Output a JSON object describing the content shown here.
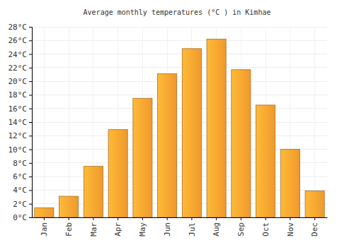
{
  "chart_data": {
    "type": "bar",
    "title": "Average monthly temperatures (°C ) in Kimhae",
    "categories": [
      "Jan",
      "Feb",
      "Mar",
      "Apr",
      "May",
      "Jun",
      "Jul",
      "Aug",
      "Sep",
      "Oct",
      "Nov",
      "Dec"
    ],
    "values": [
      1.4,
      3.1,
      7.5,
      12.9,
      17.5,
      21.1,
      24.8,
      26.2,
      21.7,
      16.5,
      10.0,
      3.9
    ],
    "color": "#fca12f",
    "ylim": [
      0,
      28
    ],
    "yticks": [
      {
        "value": 0,
        "label": "0°C"
      },
      {
        "value": 2,
        "label": "2°C"
      },
      {
        "value": 4,
        "label": "4°C"
      },
      {
        "value": 6,
        "label": "6°C"
      },
      {
        "value": 8,
        "label": "8°C"
      },
      {
        "value": 10,
        "label": "10°C"
      },
      {
        "value": 12,
        "label": "12°C"
      },
      {
        "value": 14,
        "label": "14°C"
      },
      {
        "value": 16,
        "label": "16°C"
      },
      {
        "value": 18,
        "label": "18°C"
      },
      {
        "value": 20,
        "label": "20°C"
      },
      {
        "value": 22,
        "label": "22°C"
      },
      {
        "value": 24,
        "label": "24°C"
      },
      {
        "value": 26,
        "label": "26°C"
      },
      {
        "value": 28,
        "label": "28°C"
      }
    ],
    "grid": true
  }
}
